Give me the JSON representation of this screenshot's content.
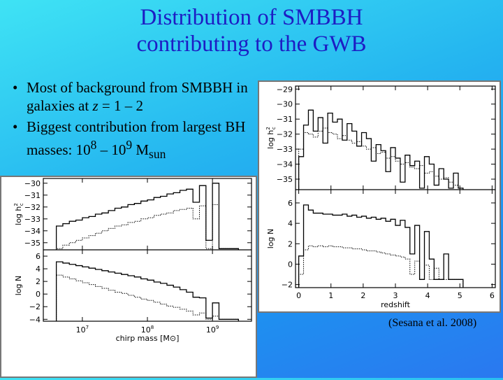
{
  "title": {
    "line1": "Distribution of SMBBH",
    "line2": "contributing to the GWB"
  },
  "bullets": [
    {
      "marker": "•",
      "text_before": "Most of background from SMBBH in galaxies at ",
      "italic": "z",
      "text_after": " = 1 – 2"
    },
    {
      "marker": "•",
      "text_before": "Biggest contribution from largest BH masses: 10",
      "sup1": "8",
      "mid": " – 10",
      "sup2": "9",
      "unit": " M",
      "sub": "sun"
    }
  ],
  "citation": "(Sesana et al. 2008)",
  "chart_data": [
    {
      "type": "line",
      "panels": [
        {
          "ylabel": "log h_c^2",
          "yticks": [
            "-29",
            "-30",
            "-31",
            "-32",
            "-33",
            "-34",
            "-35"
          ],
          "ylim": [
            -35.7,
            -28.8
          ],
          "series": [
            {
              "style": "solid",
              "x": [
                0,
                0.15,
                0.3,
                0.45,
                0.6,
                0.75,
                0.9,
                1.05,
                1.2,
                1.35,
                1.5,
                1.65,
                1.8,
                1.95,
                2.1,
                2.25,
                2.4,
                2.55,
                2.7,
                2.85,
                3.0,
                3.15,
                3.3,
                3.45,
                3.6,
                3.75,
                3.9,
                4.05,
                4.2,
                4.35,
                4.5,
                4.65,
                4.8,
                4.95
              ],
              "y": [
                -33.5,
                -31.4,
                -30.4,
                -31.8,
                -30.9,
                -32.6,
                -30.6,
                -31.2,
                -31.0,
                -32.4,
                -31.3,
                -31.8,
                -32.8,
                -31.9,
                -32.3,
                -33.8,
                -32.7,
                -33.1,
                -34.5,
                -32.9,
                -33.6,
                -35.2,
                -33.4,
                -34.1,
                -33.8,
                -35.6,
                -33.5,
                -34.0,
                -35.4,
                -34.3,
                -35.0,
                -35.6,
                -34.6,
                -35.6
              ]
            },
            {
              "style": "dotted",
              "x": [
                0,
                0.15,
                0.3,
                0.45,
                0.6,
                0.75,
                0.9,
                1.05,
                1.2,
                1.35,
                1.5,
                1.65,
                1.8,
                1.95,
                2.1,
                2.25,
                2.4,
                2.55,
                2.7,
                2.85,
                3.0,
                3.15,
                3.3,
                3.45,
                3.6,
                3.75,
                3.9,
                4.05,
                4.2,
                4.35,
                4.5,
                4.65,
                4.8,
                4.95
              ],
              "y": [
                -33.0,
                -31.9,
                -32.0,
                -32.2,
                -31.8,
                -31.6,
                -31.9,
                -32.0,
                -32.3,
                -32.1,
                -32.4,
                -32.6,
                -32.5,
                -32.8,
                -33.0,
                -32.9,
                -33.3,
                -33.2,
                -33.6,
                -33.5,
                -33.8,
                -34.0,
                -33.9,
                -34.2,
                -34.3,
                -34.1,
                -34.6,
                -34.5,
                -34.8,
                -35.0,
                -34.9,
                -35.2,
                -35.4,
                -35.6
              ]
            }
          ]
        },
        {
          "ylabel": "log N",
          "yticks": [
            "6",
            "4",
            "2",
            "0",
            "-2"
          ],
          "ylim": [
            -2.3,
            7.3
          ],
          "series": [
            {
              "style": "solid",
              "x": [
                0,
                0.15,
                0.3,
                0.45,
                0.6,
                0.75,
                0.9,
                1.05,
                1.2,
                1.35,
                1.5,
                1.65,
                1.8,
                1.95,
                2.1,
                2.25,
                2.4,
                2.55,
                2.7,
                2.85,
                3.0,
                3.15,
                3.3,
                3.45,
                3.6,
                3.75,
                3.9,
                4.05,
                4.2,
                4.35,
                4.5,
                4.65,
                4.8,
                4.95
              ],
              "y": [
                0.8,
                5.8,
                5.3,
                5.0,
                5.0,
                4.9,
                4.9,
                4.8,
                4.8,
                4.9,
                4.7,
                4.8,
                4.6,
                4.7,
                4.5,
                4.6,
                4.4,
                4.5,
                4.2,
                4.4,
                3.8,
                4.3,
                3.6,
                1.0,
                3.8,
                -1.5,
                3.2,
                0.5,
                -1.5,
                -1.5,
                1.0,
                -1.5,
                -1.5,
                -1.5
              ]
            },
            {
              "style": "dotted",
              "x": [
                0,
                0.15,
                0.3,
                0.45,
                0.6,
                0.75,
                0.9,
                1.05,
                1.2,
                1.35,
                1.5,
                1.65,
                1.8,
                1.95,
                2.1,
                2.25,
                2.4,
                2.55,
                2.7,
                2.85,
                3.0,
                3.15,
                3.3,
                3.45,
                3.6,
                3.75,
                3.9,
                4.05,
                4.2,
                4.35,
                4.5,
                4.65,
                4.8,
                4.95
              ],
              "y": [
                -1.0,
                1.4,
                1.8,
                1.7,
                1.8,
                1.7,
                1.8,
                1.7,
                1.7,
                1.6,
                1.6,
                1.5,
                1.5,
                1.4,
                1.3,
                1.3,
                1.2,
                1.1,
                1.0,
                0.9,
                0.8,
                0.7,
                0.5,
                -1.0,
                0.3,
                -1.5,
                -0.1,
                -1.5,
                -0.4,
                -1.5,
                -1.5,
                -1.5,
                -1.5,
                -1.5
              ]
            }
          ]
        }
      ],
      "xlabel": "redshift",
      "xticks": [
        "0",
        "1",
        "2",
        "3",
        "4",
        "5",
        "6"
      ],
      "xlim": [
        -0.1,
        6.1
      ]
    },
    {
      "type": "line",
      "panels": [
        {
          "ylabel": "log h_c^2",
          "yticks": [
            "-30",
            "-31",
            "-32",
            "-33",
            "-34",
            "-35"
          ],
          "ylim": [
            -35.6,
            -29.6
          ],
          "series": [
            {
              "style": "solid",
              "x": [
                6.6,
                6.7,
                6.8,
                6.9,
                7.0,
                7.1,
                7.2,
                7.3,
                7.4,
                7.5,
                7.6,
                7.7,
                7.8,
                7.9,
                8.0,
                8.1,
                8.2,
                8.3,
                8.4,
                8.5,
                8.6,
                8.7,
                8.8,
                8.9,
                9.0,
                9.1,
                9.2,
                9.3
              ],
              "y": [
                -33.6,
                -33.4,
                -33.2,
                -33.1,
                -32.9,
                -32.8,
                -32.6,
                -32.5,
                -32.3,
                -32.1,
                -32.0,
                -31.8,
                -31.7,
                -31.5,
                -31.4,
                -31.2,
                -31.1,
                -30.9,
                -30.8,
                -30.6,
                -30.5,
                -31.6,
                -30.2,
                -34.8,
                -30.0,
                -35.5,
                -35.5,
                -35.5
              ]
            },
            {
              "style": "dotted",
              "x": [
                6.6,
                6.7,
                6.8,
                6.9,
                7.0,
                7.1,
                7.2,
                7.3,
                7.4,
                7.5,
                7.6,
                7.7,
                7.8,
                7.9,
                8.0,
                8.1,
                8.2,
                8.3,
                8.4,
                8.5,
                8.6,
                8.7,
                8.8,
                8.9,
                9.0,
                9.1,
                9.2,
                9.3
              ],
              "y": [
                -35.5,
                -35.2,
                -35.0,
                -34.8,
                -34.6,
                -34.4,
                -34.2,
                -34.0,
                -33.8,
                -33.6,
                -33.5,
                -33.3,
                -33.2,
                -33.0,
                -32.9,
                -32.7,
                -32.6,
                -32.5,
                -32.3,
                -32.2,
                -32.1,
                -33.0,
                -31.9,
                -35.5,
                -31.8,
                -35.5,
                -35.5,
                -35.5
              ]
            }
          ]
        },
        {
          "ylabel": "log N",
          "yticks": [
            "6",
            "4",
            "2",
            "0",
            "-2",
            "-4"
          ],
          "ylim": [
            -4.3,
            7.0
          ],
          "series": [
            {
              "style": "solid",
              "x": [
                6.6,
                6.7,
                6.8,
                6.9,
                7.0,
                7.1,
                7.2,
                7.3,
                7.4,
                7.5,
                7.6,
                7.7,
                7.8,
                7.9,
                8.0,
                8.1,
                8.2,
                8.3,
                8.4,
                8.5,
                8.6,
                8.7,
                8.8,
                8.9,
                9.0,
                9.1,
                9.2,
                9.3
              ],
              "y": [
                5.1,
                4.9,
                4.7,
                4.5,
                4.3,
                4.1,
                3.9,
                3.7,
                3.5,
                3.3,
                3.1,
                2.9,
                2.7,
                2.4,
                2.2,
                1.9,
                1.7,
                1.4,
                1.1,
                0.7,
                0.3,
                -0.5,
                -0.6,
                -3.8,
                -1.4,
                -4.0,
                -4.0,
                -4.0
              ]
            },
            {
              "style": "dotted",
              "x": [
                6.6,
                6.7,
                6.8,
                6.9,
                7.0,
                7.1,
                7.2,
                7.3,
                7.4,
                7.5,
                7.6,
                7.7,
                7.8,
                7.9,
                8.0,
                8.1,
                8.2,
                8.3,
                8.4,
                8.5,
                8.6,
                8.7,
                8.8,
                8.9,
                9.0,
                9.1,
                9.2,
                9.3
              ],
              "y": [
                3.0,
                2.7,
                2.4,
                2.1,
                1.8,
                1.5,
                1.2,
                0.9,
                0.6,
                0.3,
                0.1,
                -0.2,
                -0.5,
                -0.8,
                -1.0,
                -1.3,
                -1.6,
                -1.9,
                -2.1,
                -2.4,
                -2.7,
                -3.3,
                -3.0,
                -4.0,
                -3.5,
                -4.0,
                -4.0,
                -4.0
              ]
            }
          ]
        }
      ],
      "xlabel": "chirp mass [M⊙]",
      "xticks": [
        {
          "pos": 7,
          "base": "10",
          "exp": "7"
        },
        {
          "pos": 8,
          "base": "10",
          "exp": "8"
        },
        {
          "pos": 9,
          "base": "10",
          "exp": "9"
        }
      ],
      "xlim": [
        6.4,
        9.6
      ]
    }
  ]
}
